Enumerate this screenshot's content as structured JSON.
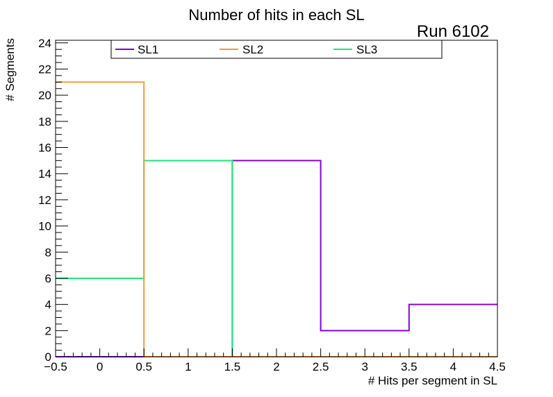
{
  "chart_data": {
    "type": "histogram-step",
    "title": "Number of hits in each SL",
    "annotation": "Run 6102",
    "xlabel": "# Hits per segment in SL",
    "ylabel": "# Segments",
    "xlim": [
      -0.5,
      4.5
    ],
    "ylim": [
      0,
      24.2
    ],
    "x_major_ticks": [
      -0.5,
      0,
      0.5,
      1,
      1.5,
      2,
      2.5,
      3,
      3.5,
      4,
      4.5
    ],
    "x_tick_labels": [
      "−0.5",
      "0",
      "0.5",
      "1",
      "1.5",
      "2",
      "2.5",
      "3",
      "3.5",
      "4",
      "4.5"
    ],
    "y_major_ticks": [
      0,
      2,
      4,
      6,
      8,
      10,
      12,
      14,
      16,
      18,
      20,
      22,
      24
    ],
    "y_tick_labels": [
      "0",
      "2",
      "4",
      "6",
      "8",
      "10",
      "12",
      "14",
      "16",
      "18",
      "20",
      "22",
      "24"
    ],
    "bin_edges": [
      -0.5,
      0.5,
      1.5,
      2.5,
      3.5,
      4.5
    ],
    "legend_position": "top",
    "series": [
      {
        "name": "SL1",
        "color": "#8800dd",
        "values": [
          0,
          0,
          15,
          2,
          4
        ]
      },
      {
        "name": "SL2",
        "color": "#f59a3a",
        "values": [
          21,
          0,
          0,
          0,
          0
        ]
      },
      {
        "name": "SL3",
        "color": "#1ee87a",
        "values": [
          6,
          15,
          0,
          0,
          0
        ]
      }
    ]
  }
}
